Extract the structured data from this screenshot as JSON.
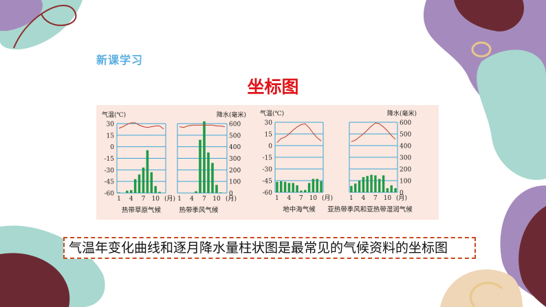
{
  "slide": {
    "section_label": "新课学习",
    "title": "坐标图",
    "caption": "气温年变化曲线和逐月降水量柱状图是最常见的气候资料的坐标图"
  },
  "colors": {
    "title": "#e0141a",
    "section": "#5aaee0",
    "temp_line": "#c0392b",
    "precip_bar": "#1f9a4a",
    "grid": "#3aa6d8",
    "panel_bg": "#fbe8e0",
    "caption_border": "#c8481e"
  },
  "chart_data": [
    {
      "type": "bar+line",
      "name": "热带草原气候",
      "temp_axis_label": "气温(℃)",
      "precip_axis_label": "降水(毫米)",
      "x": [
        1,
        2,
        3,
        4,
        5,
        6,
        7,
        8,
        9,
        10,
        11,
        12
      ],
      "x_ticks": [
        "1",
        "4",
        "7",
        "10"
      ],
      "x_unit": "(月)",
      "temp_ylim": [
        -60,
        30
      ],
      "temp_ticks": [
        "30",
        "15",
        "0",
        "-15",
        "-30",
        "-45",
        "-60"
      ],
      "precip_ylim": [
        0,
        600
      ],
      "precip_ticks": [
        "600",
        "500",
        "400",
        "300",
        "200",
        "100",
        "0"
      ],
      "temperature": [
        24,
        26,
        29,
        31,
        31,
        28,
        26,
        25,
        26,
        27,
        27,
        23
      ],
      "precipitation": [
        5,
        0,
        20,
        25,
        120,
        160,
        220,
        370,
        180,
        60,
        10,
        0
      ]
    },
    {
      "type": "bar+line",
      "name": "热带季风气候",
      "temp_axis_label": "气温(℃)",
      "precip_axis_label": "降水(毫米)",
      "x": [
        1,
        2,
        3,
        4,
        5,
        6,
        7,
        8,
        9,
        10,
        11,
        12
      ],
      "x_ticks": [
        "1",
        "4",
        "7",
        "10"
      ],
      "x_unit": "(月)",
      "temp_ylim": [
        -60,
        30
      ],
      "temp_ticks": [
        "30",
        "15",
        "0",
        "-15",
        "-30",
        "-45",
        "-60"
      ],
      "precip_ylim": [
        0,
        600
      ],
      "precip_ticks": [
        "600",
        "500",
        "400",
        "300",
        "200",
        "100",
        "0"
      ],
      "temperature": [
        26,
        25,
        27,
        28,
        28,
        28,
        28,
        28,
        28,
        27,
        27,
        26
      ],
      "precipitation": [
        0,
        0,
        0,
        0,
        15,
        460,
        620,
        350,
        260,
        70,
        5,
        0
      ]
    },
    {
      "type": "bar+line",
      "name": "地中海气候",
      "temp_axis_label": "气温(℃)",
      "precip_axis_label": "降水(毫米)",
      "x": [
        1,
        2,
        3,
        4,
        5,
        6,
        7,
        8,
        9,
        10,
        11,
        12
      ],
      "x_ticks": [
        "1",
        "4",
        "7",
        "10"
      ],
      "x_unit": "(月)",
      "temp_ylim": [
        -60,
        30
      ],
      "temp_ticks": [
        "30",
        "15",
        "0",
        "-15",
        "-30",
        "-45",
        "-60"
      ],
      "precip_ylim": [
        0,
        600
      ],
      "precip_ticks": [
        "600",
        "500",
        "400",
        "300",
        "200",
        "100",
        "0"
      ],
      "temperature": [
        4,
        9,
        11,
        15,
        20,
        24,
        27,
        28,
        23,
        16,
        10,
        6
      ],
      "precipitation": [
        90,
        95,
        90,
        80,
        80,
        60,
        15,
        20,
        80,
        115,
        115,
        95
      ]
    },
    {
      "type": "bar+line",
      "name": "亚热带季风和亚热带湿润气候",
      "temp_axis_label": "气温(℃)",
      "precip_axis_label": "降水(毫米)",
      "x": [
        1,
        2,
        3,
        4,
        5,
        6,
        7,
        8,
        9,
        10,
        11,
        12
      ],
      "x_ticks": [
        "1",
        "4",
        "7",
        "10"
      ],
      "x_unit": "(月)",
      "temp_ylim": [
        -60,
        30
      ],
      "temp_ticks": [
        "30",
        "15",
        "0",
        "-15",
        "-30",
        "-45",
        "-60"
      ],
      "precip_ylim": [
        0,
        600
      ],
      "precip_ticks": [
        "600",
        "500",
        "400",
        "300",
        "200",
        "100",
        "0"
      ],
      "temperature": [
        5,
        7,
        11,
        15,
        20,
        25,
        29,
        28,
        24,
        19,
        13,
        8
      ],
      "precipitation": [
        55,
        75,
        100,
        130,
        140,
        150,
        145,
        115,
        145,
        35,
        60,
        35
      ]
    }
  ]
}
